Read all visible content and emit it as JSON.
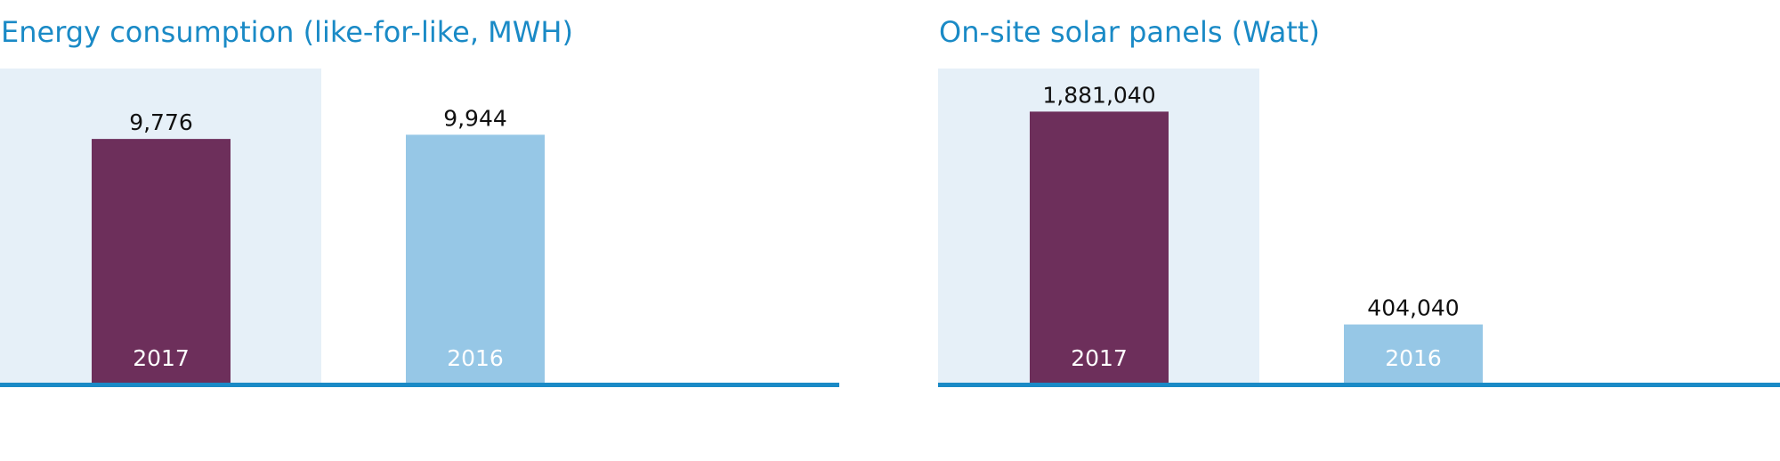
{
  "colors": {
    "title": "#1a8ac6",
    "highlight_band": "#e6f0f8",
    "baseline": "#1a8ac6",
    "bar_2017": "#6d2f5b",
    "bar_2016": "#96c7e6",
    "value_label": "#111111",
    "bar_label": "#ffffff"
  },
  "charts": [
    {
      "title": "Energy consumption (like-for-like, MWH)"
    },
    {
      "title": "On-site solar panels (Watt)"
    }
  ],
  "chart_data": [
    {
      "type": "bar",
      "title": "Energy consumption (like-for-like, MWH)",
      "categories": [
        "2017",
        "2016"
      ],
      "values": [
        9776,
        9944
      ],
      "value_labels": [
        "9,776",
        "9,944"
      ],
      "highlighted_category": "2017",
      "bar_colors": [
        "#6d2f5b",
        "#96c7e6"
      ],
      "ylim": [
        0,
        12600
      ],
      "grid": false,
      "legend": "none"
    },
    {
      "type": "bar",
      "title": "On-site solar panels (Watt)",
      "categories": [
        "2017",
        "2016"
      ],
      "values": [
        1881040,
        404040
      ],
      "value_labels": [
        "1,881,040",
        "404,040"
      ],
      "highlighted_category": "2017",
      "bar_colors": [
        "#6d2f5b",
        "#96c7e6"
      ],
      "ylim": [
        0,
        2180000
      ],
      "grid": false,
      "legend": "none"
    }
  ]
}
